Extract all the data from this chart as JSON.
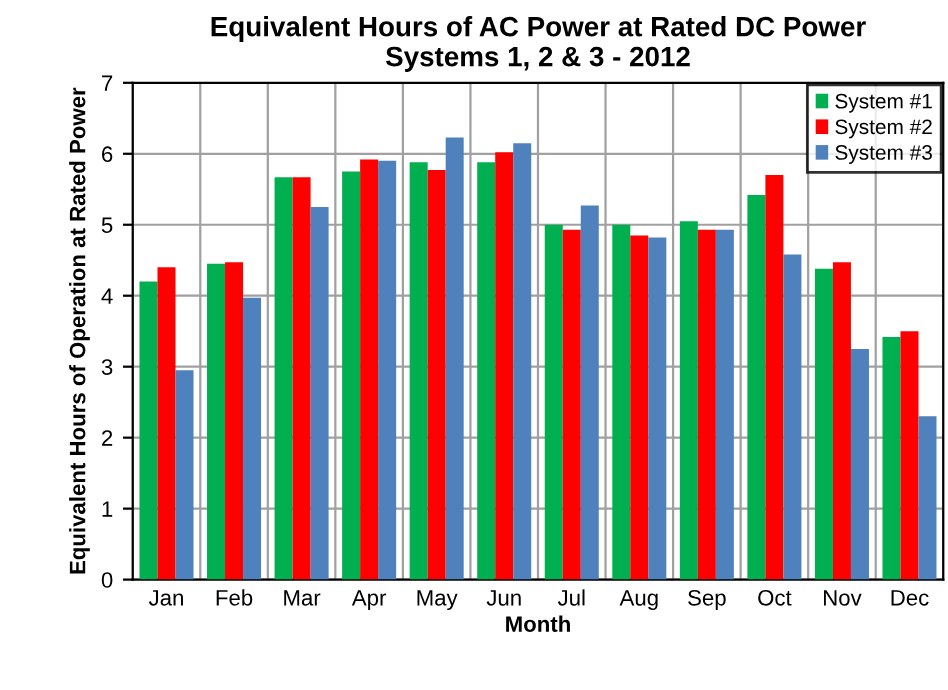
{
  "chart_data": {
    "type": "bar",
    "title": "Equivalent Hours of AC Power at Rated DC Power\nSystems 1, 2 & 3 - 2012",
    "xlabel": "Month",
    "ylabel": "Equivalent Hours of Operation at Rated Power",
    "categories": [
      "Jan",
      "Feb",
      "Mar",
      "Apr",
      "May",
      "Jun",
      "Jul",
      "Aug",
      "Sep",
      "Oct",
      "Nov",
      "Dec"
    ],
    "series": [
      {
        "name": "System #1",
        "color": "#00b050",
        "values": [
          4.2,
          4.45,
          5.67,
          5.75,
          5.88,
          5.88,
          5.0,
          5.0,
          5.05,
          5.42,
          4.38,
          3.42
        ]
      },
      {
        "name": "System #2",
        "color": "#ff0000",
        "values": [
          4.4,
          4.47,
          5.67,
          5.92,
          5.77,
          6.02,
          4.93,
          4.85,
          4.93,
          5.7,
          4.47,
          3.5
        ]
      },
      {
        "name": "System #3",
        "color": "#4f81bd",
        "values": [
          2.95,
          3.97,
          5.25,
          5.9,
          6.23,
          6.15,
          5.27,
          4.82,
          4.93,
          4.58,
          3.25,
          2.3
        ]
      }
    ],
    "ylim": [
      0,
      7
    ],
    "yticks": [
      0,
      1,
      2,
      3,
      4,
      5,
      6,
      7
    ],
    "grid": true,
    "legend": "top right"
  }
}
